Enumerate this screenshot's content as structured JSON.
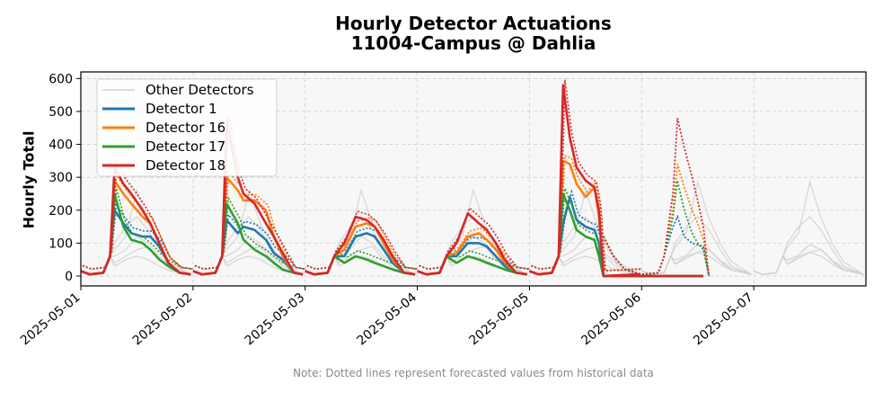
{
  "title_line1": "Hourly Detector Actuations",
  "title_line2": "11004-Campus @ Dahlia",
  "note": "Note: Dotted lines represent forecasted values from historical data",
  "chart_data": {
    "type": "line",
    "title": "Hourly Detector Actuations\n11004-Campus @ Dahlia",
    "xlabel": "",
    "ylabel": "Hourly Total",
    "x_ticks": [
      "2025-05-01",
      "2025-05-02",
      "2025-05-03",
      "2025-05-04",
      "2025-05-05",
      "2025-05-06",
      "2025-05-07"
    ],
    "xlim": [
      "2025-05-01T00:00",
      "2025-05-07T23:00"
    ],
    "y_ticks": [
      0,
      100,
      200,
      300,
      400,
      500,
      600
    ],
    "ylim": [
      -30,
      620
    ],
    "grid": true,
    "legend_position": "top-left",
    "other_detectors_label": "Other Detectors",
    "series": [
      {
        "name": "Detector 1",
        "color": "#1f77b4",
        "peaks_actual": [
          [
            [
              0.3,
              200
            ],
            [
              0.38,
              160
            ],
            [
              0.45,
              130
            ],
            [
              0.55,
              120
            ],
            [
              0.62,
              120
            ],
            [
              0.7,
              90
            ],
            [
              0.78,
              40
            ],
            [
              0.88,
              10
            ]
          ],
          [
            [
              0.3,
              170
            ],
            [
              0.4,
              130
            ],
            [
              0.45,
              150
            ],
            [
              0.55,
              140
            ],
            [
              0.65,
              110
            ],
            [
              0.72,
              70
            ],
            [
              0.8,
              50
            ],
            [
              0.9,
              10
            ]
          ],
          [
            [
              0.35,
              60
            ],
            [
              0.45,
              120
            ],
            [
              0.55,
              130
            ],
            [
              0.62,
              120
            ],
            [
              0.7,
              80
            ],
            [
              0.78,
              40
            ],
            [
              0.88,
              10
            ]
          ],
          [
            [
              0.35,
              60
            ],
            [
              0.45,
              100
            ],
            [
              0.55,
              100
            ],
            [
              0.62,
              90
            ],
            [
              0.7,
              60
            ],
            [
              0.78,
              30
            ],
            [
              0.88,
              10
            ]
          ],
          [
            [
              0.3,
              160
            ],
            [
              0.36,
              240
            ],
            [
              0.42,
              170
            ],
            [
              0.5,
              150
            ],
            [
              0.58,
              140
            ],
            [
              0.62,
              100
            ],
            [
              0.66,
              0
            ]
          ]
        ],
        "forecast_peak": [
          [
            0.28,
            150
          ],
          [
            0.32,
            180
          ],
          [
            0.38,
            120
          ],
          [
            0.45,
            100
          ],
          [
            0.5,
            95
          ],
          [
            0.55,
            90
          ],
          [
            0.6,
            0
          ]
        ]
      },
      {
        "name": "Detector 16",
        "color": "#ff7f0e",
        "peaks_actual": [
          [
            [
              0.3,
              290
            ],
            [
              0.38,
              250
            ],
            [
              0.45,
              220
            ],
            [
              0.55,
              180
            ],
            [
              0.62,
              160
            ],
            [
              0.7,
              100
            ],
            [
              0.78,
              40
            ],
            [
              0.88,
              10
            ]
          ],
          [
            [
              0.3,
              300
            ],
            [
              0.4,
              260
            ],
            [
              0.45,
              230
            ],
            [
              0.55,
              230
            ],
            [
              0.65,
              200
            ],
            [
              0.72,
              120
            ],
            [
              0.8,
              60
            ],
            [
              0.9,
              10
            ]
          ],
          [
            [
              0.35,
              80
            ],
            [
              0.45,
              150
            ],
            [
              0.55,
              160
            ],
            [
              0.62,
              150
            ],
            [
              0.7,
              100
            ],
            [
              0.78,
              50
            ],
            [
              0.88,
              10
            ]
          ],
          [
            [
              0.35,
              70
            ],
            [
              0.45,
              120
            ],
            [
              0.55,
              130
            ],
            [
              0.62,
              110
            ],
            [
              0.7,
              80
            ],
            [
              0.78,
              40
            ],
            [
              0.88,
              10
            ]
          ],
          [
            [
              0.3,
              350
            ],
            [
              0.36,
              340
            ],
            [
              0.42,
              280
            ],
            [
              0.5,
              240
            ],
            [
              0.58,
              270
            ],
            [
              0.62,
              180
            ],
            [
              0.66,
              0
            ]
          ]
        ],
        "forecast_peak": [
          [
            0.28,
            200
          ],
          [
            0.32,
            340
          ],
          [
            0.38,
            270
          ],
          [
            0.45,
            200
          ],
          [
            0.5,
            160
          ],
          [
            0.55,
            110
          ],
          [
            0.6,
            0
          ]
        ]
      },
      {
        "name": "Detector 17",
        "color": "#2ca02c",
        "peaks_actual": [
          [
            [
              0.3,
              250
            ],
            [
              0.38,
              150
            ],
            [
              0.45,
              110
            ],
            [
              0.55,
              100
            ],
            [
              0.62,
              80
            ],
            [
              0.7,
              50
            ],
            [
              0.78,
              30
            ],
            [
              0.88,
              10
            ]
          ],
          [
            [
              0.3,
              220
            ],
            [
              0.4,
              160
            ],
            [
              0.45,
              110
            ],
            [
              0.55,
              80
            ],
            [
              0.65,
              60
            ],
            [
              0.72,
              40
            ],
            [
              0.8,
              20
            ],
            [
              0.9,
              10
            ]
          ],
          [
            [
              0.35,
              40
            ],
            [
              0.45,
              60
            ],
            [
              0.55,
              50
            ],
            [
              0.62,
              40
            ],
            [
              0.7,
              30
            ],
            [
              0.78,
              20
            ],
            [
              0.88,
              10
            ]
          ],
          [
            [
              0.35,
              40
            ],
            [
              0.45,
              60
            ],
            [
              0.55,
              50
            ],
            [
              0.62,
              40
            ],
            [
              0.7,
              30
            ],
            [
              0.78,
              20
            ],
            [
              0.88,
              10
            ]
          ],
          [
            [
              0.3,
              250
            ],
            [
              0.36,
              200
            ],
            [
              0.42,
              140
            ],
            [
              0.5,
              120
            ],
            [
              0.58,
              110
            ],
            [
              0.62,
              60
            ],
            [
              0.66,
              0
            ]
          ]
        ],
        "forecast_peak": [
          [
            0.28,
            180
          ],
          [
            0.32,
            290
          ],
          [
            0.38,
            200
          ],
          [
            0.45,
            130
          ],
          [
            0.5,
            100
          ],
          [
            0.55,
            80
          ],
          [
            0.6,
            0
          ]
        ]
      },
      {
        "name": "Detector 18",
        "color": "#d62728",
        "peaks_actual": [
          [
            [
              0.3,
              330
            ],
            [
              0.38,
              280
            ],
            [
              0.45,
              250
            ],
            [
              0.55,
              200
            ],
            [
              0.62,
              160
            ],
            [
              0.7,
              100
            ],
            [
              0.78,
              40
            ],
            [
              0.88,
              10
            ]
          ],
          [
            [
              0.3,
              470
            ],
            [
              0.4,
              300
            ],
            [
              0.45,
              250
            ],
            [
              0.55,
              220
            ],
            [
              0.65,
              160
            ],
            [
              0.72,
              120
            ],
            [
              0.8,
              70
            ],
            [
              0.9,
              10
            ]
          ],
          [
            [
              0.35,
              100
            ],
            [
              0.45,
              180
            ],
            [
              0.55,
              170
            ],
            [
              0.62,
              150
            ],
            [
              0.7,
              110
            ],
            [
              0.78,
              60
            ],
            [
              0.88,
              10
            ]
          ],
          [
            [
              0.35,
              100
            ],
            [
              0.45,
              190
            ],
            [
              0.55,
              160
            ],
            [
              0.62,
              140
            ],
            [
              0.7,
              100
            ],
            [
              0.78,
              50
            ],
            [
              0.88,
              10
            ]
          ],
          [
            [
              0.3,
              580
            ],
            [
              0.36,
              420
            ],
            [
              0.42,
              330
            ],
            [
              0.5,
              290
            ],
            [
              0.58,
              270
            ],
            [
              0.62,
              200
            ],
            [
              0.66,
              0
            ]
          ]
        ],
        "forecast_peak": [
          [
            0.28,
            250
          ],
          [
            0.32,
            480
          ],
          [
            0.38,
            390
          ],
          [
            0.45,
            300
          ],
          [
            0.5,
            230
          ],
          [
            0.55,
            150
          ],
          [
            0.6,
            0
          ]
        ]
      }
    ]
  }
}
